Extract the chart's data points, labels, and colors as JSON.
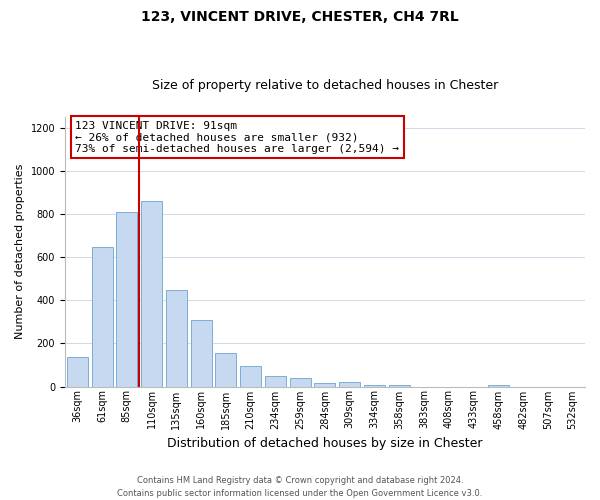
{
  "title": "123, VINCENT DRIVE, CHESTER, CH4 7RL",
  "subtitle": "Size of property relative to detached houses in Chester",
  "xlabel": "Distribution of detached houses by size in Chester",
  "ylabel": "Number of detached properties",
  "bar_labels": [
    "36sqm",
    "61sqm",
    "85sqm",
    "110sqm",
    "135sqm",
    "160sqm",
    "185sqm",
    "210sqm",
    "234sqm",
    "259sqm",
    "284sqm",
    "309sqm",
    "334sqm",
    "358sqm",
    "383sqm",
    "408sqm",
    "433sqm",
    "458sqm",
    "482sqm",
    "507sqm",
    "532sqm"
  ],
  "bar_values": [
    135,
    645,
    810,
    860,
    445,
    310,
    155,
    95,
    50,
    40,
    15,
    20,
    5,
    5,
    0,
    0,
    0,
    5,
    0,
    0,
    0
  ],
  "bar_color": "#c6d9f0",
  "bar_edge_color": "#7bafd4",
  "red_line_x": 2.5,
  "annotation_lines": [
    "123 VINCENT DRIVE: 91sqm",
    "← 26% of detached houses are smaller (932)",
    "73% of semi-detached houses are larger (2,594) →"
  ],
  "annotation_box_color": "#ffffff",
  "annotation_box_edge": "#cc0000",
  "ylim": [
    0,
    1250
  ],
  "yticks": [
    0,
    200,
    400,
    600,
    800,
    1000,
    1200
  ],
  "footer_lines": [
    "Contains HM Land Registry data © Crown copyright and database right 2024.",
    "Contains public sector information licensed under the Open Government Licence v3.0."
  ],
  "background_color": "#ffffff",
  "grid_color": "#d0dae8",
  "red_line_color": "#cc0000",
  "title_fontsize": 10,
  "subtitle_fontsize": 9,
  "ylabel_fontsize": 8,
  "xlabel_fontsize": 9,
  "tick_fontsize": 7,
  "footer_fontsize": 6,
  "annotation_fontsize": 8
}
